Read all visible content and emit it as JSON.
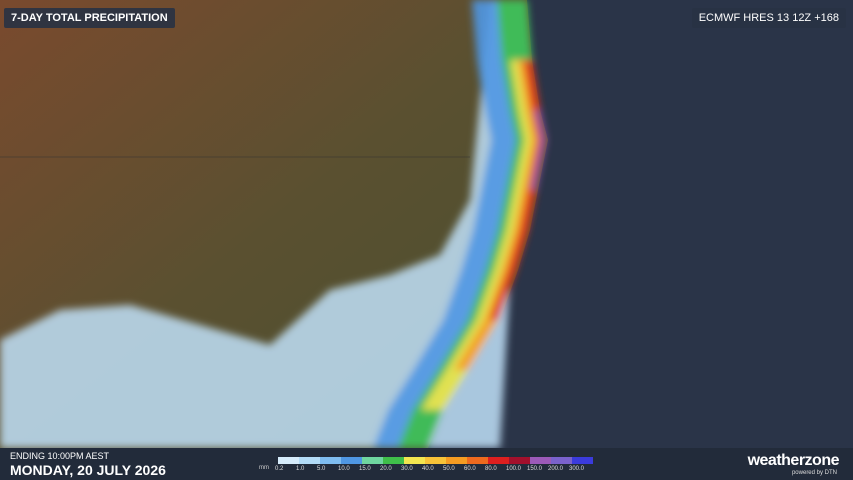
{
  "header": {
    "title": "7-DAY TOTAL PRECIPITATION",
    "model": "ECMWF HRES 13 12Z +168"
  },
  "footer": {
    "ending": "ENDING 10:00PM AEST",
    "date": "MONDAY, 20 JULY 2026",
    "brand": "weatherzone",
    "brand_sub": "powered by DTN"
  },
  "legend": {
    "unit": "mm",
    "items": [
      {
        "label": "0.2",
        "color": "#d6ecfb"
      },
      {
        "label": "1.0",
        "color": "#b3dcf7"
      },
      {
        "label": "5.0",
        "color": "#7fbdf0"
      },
      {
        "label": "10.0",
        "color": "#4f97e3"
      },
      {
        "label": "15.0",
        "color": "#6fd6a0"
      },
      {
        "label": "20.0",
        "color": "#3fbf4a"
      },
      {
        "label": "30.0",
        "color": "#f3e650"
      },
      {
        "label": "40.0",
        "color": "#f7c338"
      },
      {
        "label": "50.0",
        "color": "#f59c22"
      },
      {
        "label": "60.0",
        "color": "#ee6a1e"
      },
      {
        "label": "80.0",
        "color": "#dd1f1f"
      },
      {
        "label": "100.0",
        "color": "#a3102c"
      },
      {
        "label": "150.0",
        "color": "#9c5ab8"
      },
      {
        "label": "200.0",
        "color": "#7a62cc"
      },
      {
        "label": "300.0",
        "color": "#3b3bdc"
      }
    ]
  }
}
